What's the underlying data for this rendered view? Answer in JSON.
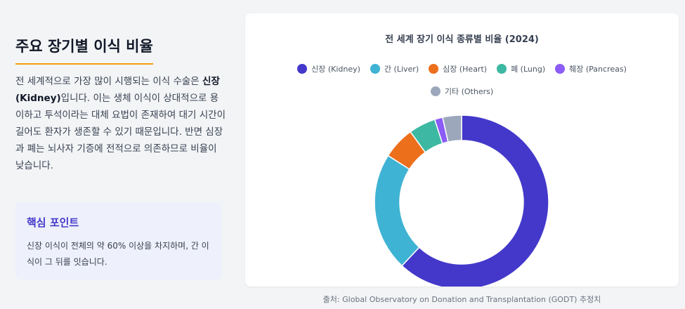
{
  "left": {
    "title": "주요 장기별 이식 비율",
    "desc_before": "전 세계적으로 가장 많이 시행되는 이식 수술은 ",
    "desc_bold": "신장(Kidney)",
    "desc_after": "입니다. 이는 생체 이식이 상대적으로 용이하고 투석이라는 대체 요법이 존재하여 대기 시간이 길어도 환자가 생존할 수 있기 때문입니다. 반면 심장과 폐는 뇌사자 기증에 전적으로 의존하므로 비율이 낮습니다.",
    "point_title": "핵심 포인트",
    "point_text": "신장 이식이 전체의 약 60% 이상을 차지하며, 간 이식이 그 뒤를 잇습니다."
  },
  "chart_data": {
    "type": "pie",
    "title": "전 세계 장기 이식 종류별 비율 (2024)",
    "legend_position": "top",
    "categories": [
      "신장 (Kidney)",
      "간 (Liver)",
      "심장 (Heart)",
      "폐 (Lung)",
      "췌장 (Pancreas)",
      "기타 (Others)"
    ],
    "values": [
      62,
      22,
      6,
      5,
      1.5,
      3.5
    ],
    "colors": [
      "#4338ca",
      "#3fb3d4",
      "#ec6f1c",
      "#3db8a2",
      "#8b5cf6",
      "#9ca7bc"
    ]
  },
  "source": "출처: Global Observatory on Donation and Transplantation (GODT) 추정치"
}
